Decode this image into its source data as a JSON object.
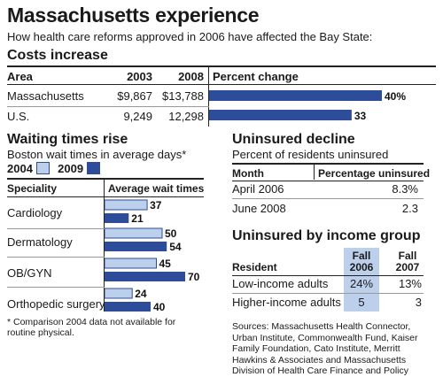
{
  "header": {
    "title": "Massachusetts experience",
    "subtitle": "How health care reforms approved in 2006 have affected the Bay State:"
  },
  "costs": {
    "title": "Costs increase",
    "col_area": "Area",
    "col_2003": "2003",
    "col_2008": "2008",
    "col_pct": "Percent change",
    "rows": [
      {
        "area": "Massachusetts",
        "v2003": "$9,867",
        "v2008": "$13,788",
        "pct_label": "40%",
        "pct": 40
      },
      {
        "area": "U.S.",
        "v2003": "9,249",
        "v2008": "12,298",
        "pct_label": "33",
        "pct": 33
      }
    ]
  },
  "waiting": {
    "title": "Waiting times rise",
    "subtitle": "Boston wait times in average days*",
    "legend_2004": "2004",
    "legend_2009": "2009",
    "col_specialty": "Speciality",
    "col_avg": "Average wait times",
    "rows": [
      {
        "name": "Cardiology",
        "v2004_label": "37",
        "v2009_label": "21"
      },
      {
        "name": "Dermatology",
        "v2004_label": "50",
        "v2009_label": "54"
      },
      {
        "name": "OB/GYN",
        "v2004_label": "45",
        "v2009_label": "70"
      },
      {
        "name": "Orthopedic surgery",
        "v2004_label": "24",
        "v2009_label": "40"
      }
    ],
    "note": "* Comparison 2004 data not available for routine physical."
  },
  "uninsured": {
    "title": "Uninsured decline",
    "subtitle": "Percent of residents uninsured",
    "col_month": "Month",
    "col_pct": "Percentage uninsured",
    "rows": [
      {
        "month": "April 2006",
        "value": "8.3%"
      },
      {
        "month": "June 2008",
        "value": "2.3"
      }
    ]
  },
  "income": {
    "title": "Uninsured by income group",
    "col_resident": "Resident",
    "col_fall2006_a": "Fall",
    "col_fall2006_b": "2006",
    "col_fall2007_a": "Fall",
    "col_fall2007_b": "2007",
    "rows": [
      {
        "resident": "Low-income adults",
        "fall2006": "24%",
        "fall2007": "13%"
      },
      {
        "resident": "Higher-income adults",
        "fall2006": "5",
        "fall2007": "3"
      }
    ]
  },
  "sources": "Sources: Massachusetts Health Connector, Urban Institute, Commonwealth Fund, Kaiser Family Foundation, Cato Institute, Merritt Hawkins & Associates and Massachusetts Division of Health Care Finance and Policy",
  "colors": {
    "dark_blue": "#2d4c9a",
    "light_blue": "#bcd0ec",
    "shade": "#bcd0ec"
  },
  "chart_data": [
    {
      "type": "bar",
      "title": "Costs increase",
      "categories": [
        "Massachusetts",
        "U.S."
      ],
      "series": [
        {
          "name": "Percent change",
          "values": [
            40,
            33
          ]
        }
      ]
    },
    {
      "type": "bar",
      "title": "Waiting times rise",
      "categories": [
        "Cardiology",
        "Dermatology",
        "OB/GYN",
        "Orthopedic surgery"
      ],
      "series": [
        {
          "name": "2004",
          "values": [
            37,
            50,
            45,
            24
          ]
        },
        {
          "name": "2009",
          "values": [
            21,
            54,
            70,
            40
          ]
        }
      ]
    },
    {
      "type": "table",
      "title": "Uninsured decline",
      "categories": [
        "April 2006",
        "June 2008"
      ],
      "values": [
        8.3,
        2.3
      ]
    },
    {
      "type": "table",
      "title": "Uninsured by income group",
      "categories": [
        "Low-income adults",
        "Higher-income adults"
      ],
      "series": [
        {
          "name": "Fall 2006",
          "values": [
            24,
            5
          ]
        },
        {
          "name": "Fall 2007",
          "values": [
            13,
            3
          ]
        }
      ]
    }
  ]
}
